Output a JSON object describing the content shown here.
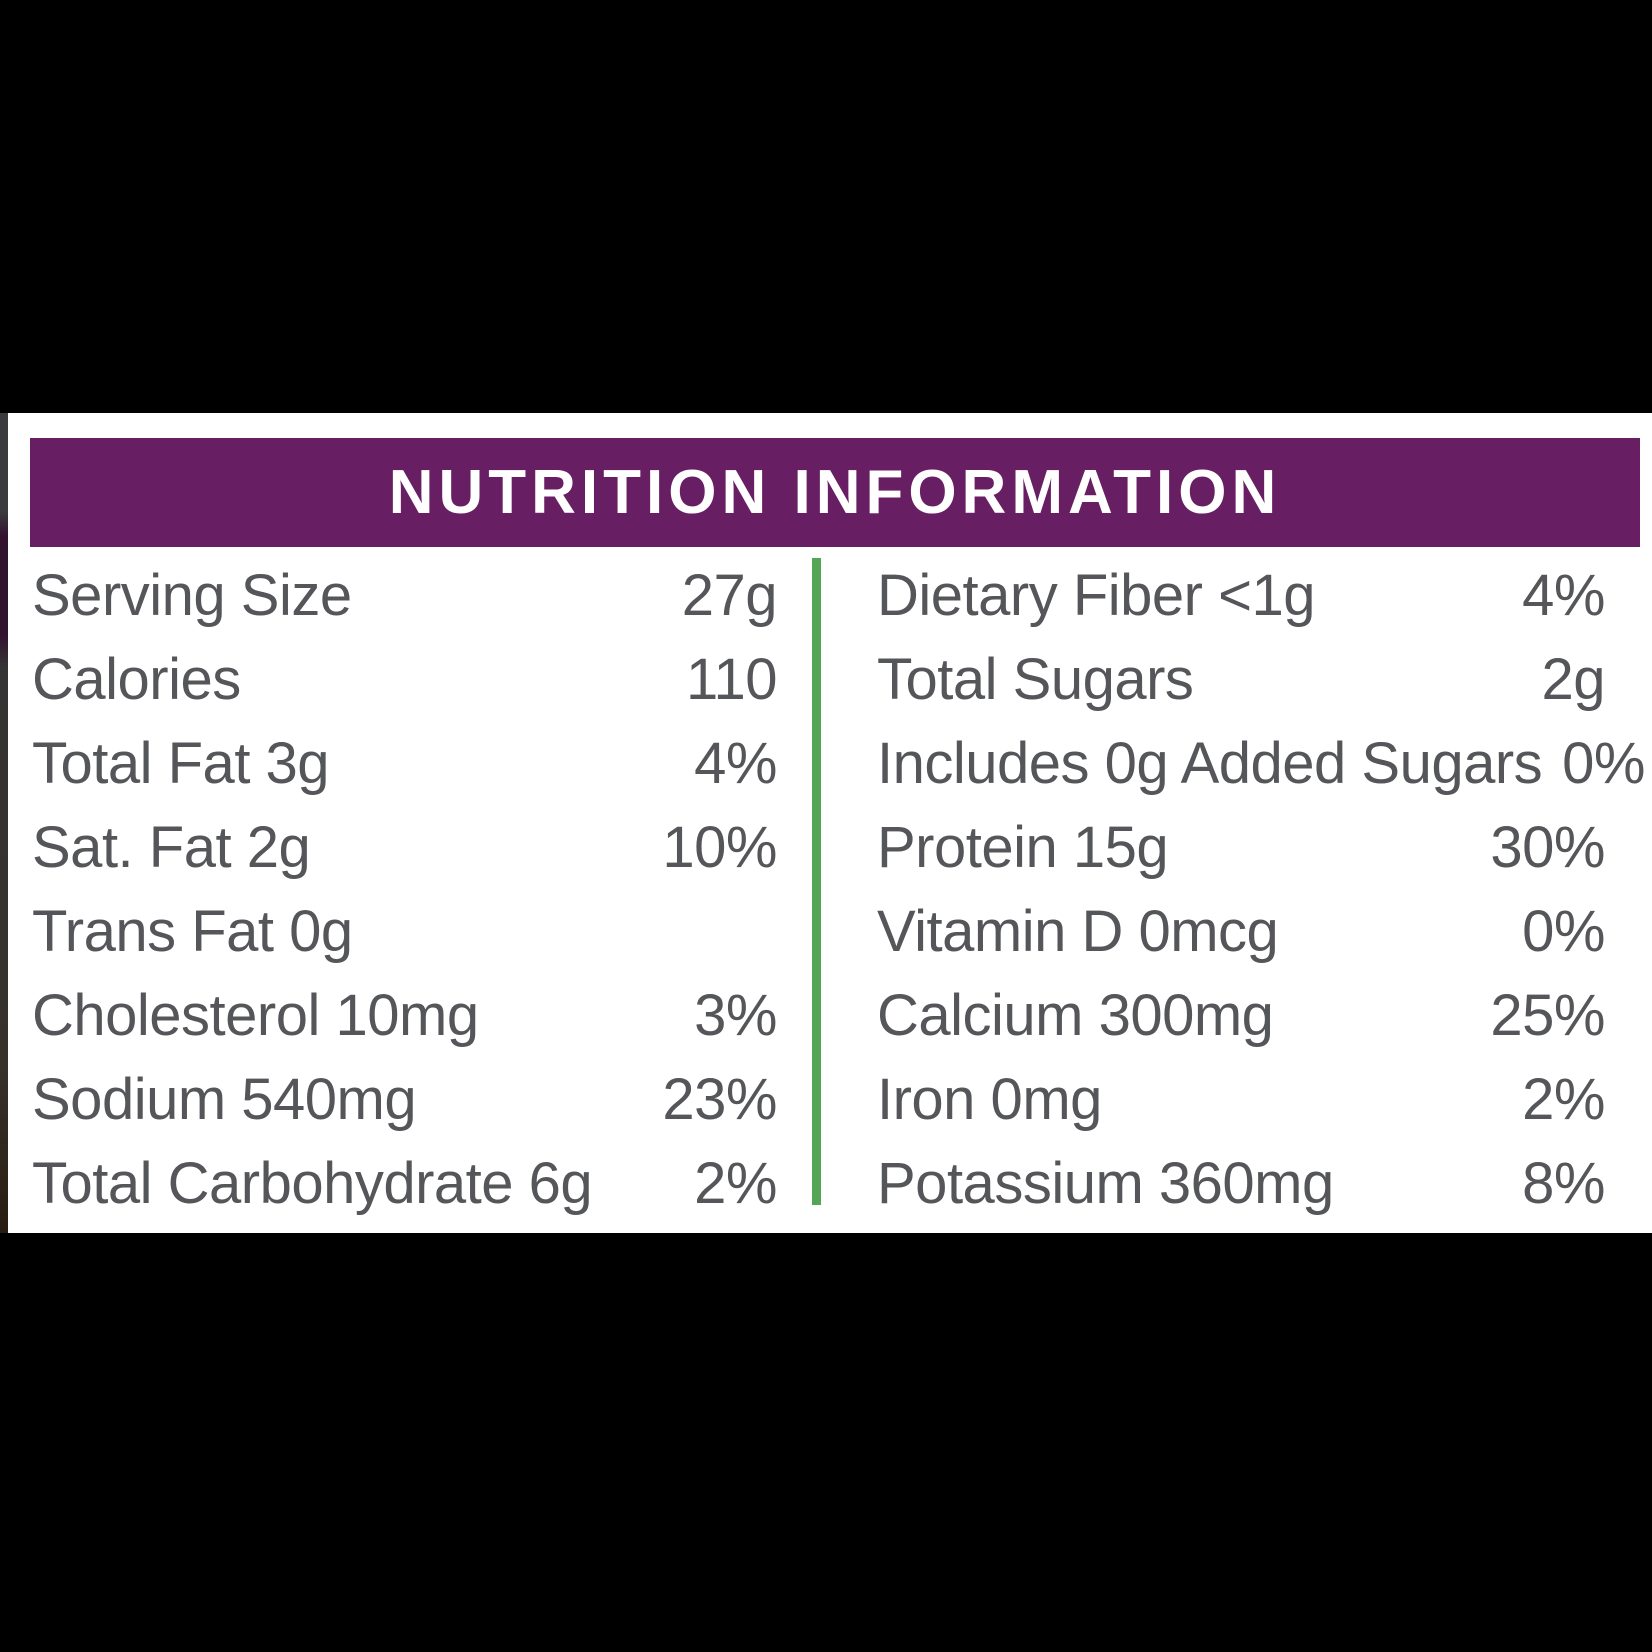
{
  "panel": {
    "title": "NUTRITION INFORMATION",
    "left_rows": [
      {
        "label": "Serving Size",
        "value": "27g"
      },
      {
        "label": "Calories",
        "value": "110"
      },
      {
        "label": "Total Fat 3g",
        "value": "4%"
      },
      {
        "label": "Sat. Fat 2g",
        "value": "10%"
      },
      {
        "label": "Trans Fat 0g",
        "value": ""
      },
      {
        "label": "Cholesterol 10mg",
        "value": "3%"
      },
      {
        "label": "Sodium 540mg",
        "value": "23%"
      },
      {
        "label": "Total Carbohydrate 6g",
        "value": "2%"
      }
    ],
    "right_rows": [
      {
        "label": "Dietary Fiber <1g",
        "value": "4%"
      },
      {
        "label": "Total Sugars",
        "value": "2g"
      },
      {
        "label": "Includes 0g Added Sugars",
        "value": "0%"
      },
      {
        "label": "Protein 15g",
        "value": "30%"
      },
      {
        "label": "Vitamin D 0mcg",
        "value": "0%"
      },
      {
        "label": "Calcium 300mg",
        "value": "25%"
      },
      {
        "label": "Iron 0mg",
        "value": "2%"
      },
      {
        "label": "Potassium 360mg",
        "value": "8%"
      }
    ]
  },
  "colors": {
    "header_bg": "#681e63",
    "title_color": "#ffffff",
    "divider_green": "#55a556",
    "text_gray": "#555659",
    "panel_bg": "#ffffff",
    "page_bg": "#000000"
  }
}
